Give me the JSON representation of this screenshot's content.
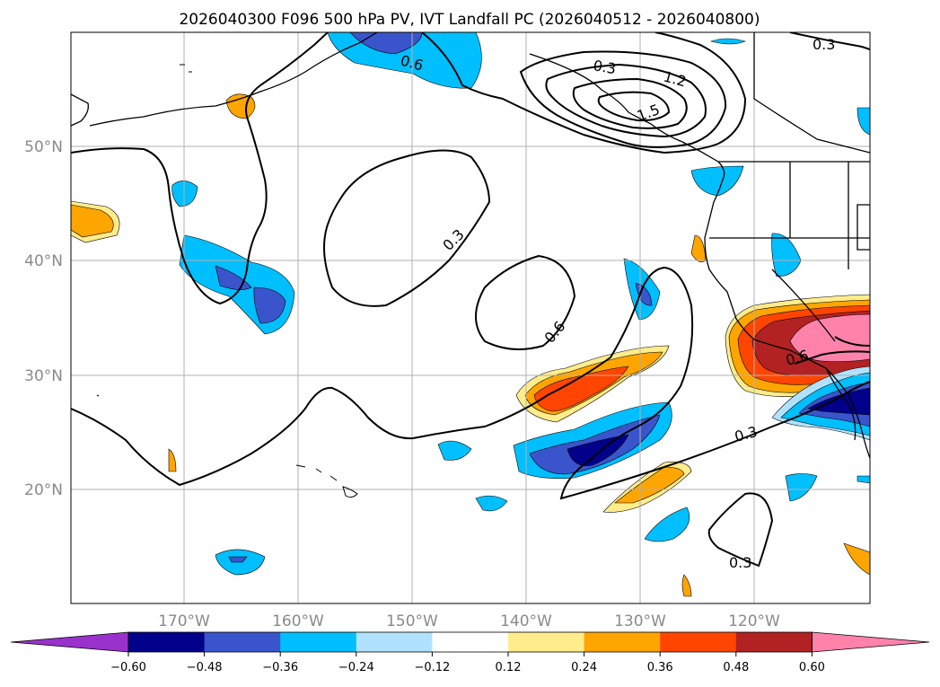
{
  "title": "2026040300 F096 500 hPa PV, IVT Landfall PC (2026040512 - 2026040800)",
  "map": {
    "lon_labels": [
      "170°W",
      "160°W",
      "150°W",
      "140°W",
      "130°W",
      "120°W"
    ],
    "lat_labels": [
      "50°N",
      "40°N",
      "30°N",
      "20°N"
    ],
    "contour_labels": [
      "0.3",
      "0.6",
      "1.2",
      "1.5",
      "0.3",
      "0.6",
      "0.6",
      "0.3",
      "0.3",
      "0.3"
    ]
  },
  "colorbar": {
    "ticks": [
      "−0.60",
      "−0.48",
      "−0.36",
      "−0.24",
      "−0.12",
      "0.12",
      "0.24",
      "0.36",
      "0.48",
      "0.60"
    ],
    "colors": [
      "#9932cc",
      "#00008b",
      "#3a55cc",
      "#00bfff",
      "#b0e2ff",
      "#ffffff",
      "#ffec8b",
      "#ffa500",
      "#ff4500",
      "#b22222",
      "#ff82ab"
    ]
  }
}
